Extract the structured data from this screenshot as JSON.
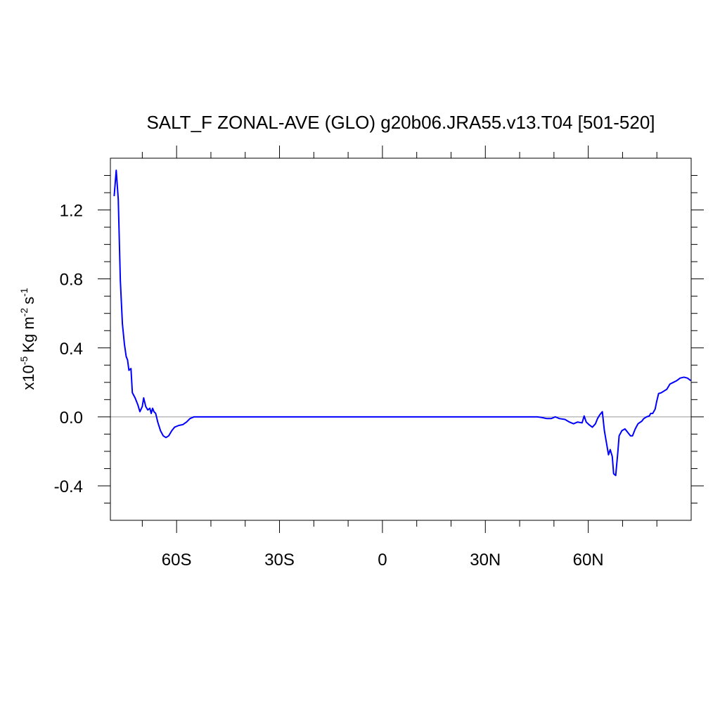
{
  "chart_data": {
    "type": "line",
    "title": "SALT_F ZONAL-AVE (GLO) g20b06.JRA55.v13.T04 [501-520]",
    "ylabel": [
      "x10",
      "-5",
      "Kg m",
      "-2",
      "s",
      "-1"
    ],
    "x": [
      -78.2,
      -77.6,
      -77.0,
      -76.4,
      -75.8,
      -75.2,
      -74.7,
      -74.3,
      -73.9,
      -73.3,
      -72.9,
      -72.1,
      -71.3,
      -70.7,
      -70.0,
      -69.6,
      -69.0,
      -68.4,
      -67.8,
      -67.4,
      -67.0,
      -66.6,
      -66.1,
      -65.5,
      -64.7,
      -63.9,
      -63.1,
      -62.3,
      -61.4,
      -60.6,
      -59.4,
      -58.2,
      -57.1,
      -56.1,
      -54.9,
      -52,
      -40,
      0,
      40,
      45.1,
      46.3,
      47.9,
      49.2,
      50.4,
      51.6,
      53.2,
      54.5,
      55.7,
      56.9,
      58.2,
      58.8,
      59.4,
      60.2,
      61.2,
      62.1,
      62.7,
      63.3,
      64.1,
      64.7,
      65.3,
      65.9,
      66.4,
      67.0,
      67.4,
      68.0,
      68.6,
      69.0,
      69.8,
      70.7,
      71.5,
      72.3,
      72.9,
      73.7,
      74.5,
      75.6,
      76.2,
      77.0,
      77.8,
      78.2,
      78.8,
      79.5,
      79.9,
      80.5,
      81.3,
      82.1,
      82.9,
      83.8,
      84.8,
      85.8,
      86.8,
      87.9,
      88.9,
      89.9
    ],
    "values": [
      1.28,
      1.43,
      1.26,
      0.79,
      0.54,
      0.42,
      0.35,
      0.33,
      0.27,
      0.28,
      0.14,
      0.11,
      0.07,
      0.03,
      0.06,
      0.11,
      0.06,
      0.04,
      0.05,
      0.02,
      0.05,
      0.03,
      0.02,
      -0.03,
      -0.08,
      -0.11,
      -0.12,
      -0.11,
      -0.08,
      -0.06,
      -0.05,
      -0.045,
      -0.03,
      -0.01,
      0,
      0,
      0,
      0,
      0,
      0,
      -0.003,
      -0.01,
      -0.01,
      0,
      -0.01,
      -0.015,
      -0.03,
      -0.04,
      -0.03,
      -0.035,
      0.005,
      -0.03,
      -0.045,
      -0.06,
      -0.04,
      -0.01,
      0.01,
      0.03,
      -0.08,
      -0.15,
      -0.22,
      -0.19,
      -0.23,
      -0.33,
      -0.34,
      -0.21,
      -0.11,
      -0.08,
      -0.07,
      -0.09,
      -0.11,
      -0.11,
      -0.07,
      -0.04,
      -0.025,
      -0.01,
      0,
      0.005,
      0.02,
      0.02,
      0.045,
      0.085,
      0.135,
      0.14,
      0.15,
      0.16,
      0.19,
      0.2,
      0.21,
      0.225,
      0.23,
      0.225,
      0.21
    ],
    "color": "#0000ff",
    "zero_line": true,
    "xlim": [
      -79.3,
      90
    ],
    "ylim": [
      -0.6,
      1.5
    ],
    "xticks": [
      {
        "value": -60,
        "label": "60S"
      },
      {
        "value": -30,
        "label": "30S"
      },
      0,
      {
        "value": 30,
        "label": "30N"
      },
      {
        "value": 60,
        "label": "60N"
      }
    ],
    "xminorticks": [
      -70,
      -50,
      -40,
      -20,
      -10,
      10,
      20,
      40,
      50,
      70,
      80
    ],
    "yticks": [
      -0.4,
      {
        "value": 0,
        "label": "0.0"
      },
      0.4,
      0.8,
      1.2
    ],
    "yminorticks": [
      -0.5,
      -0.3,
      -0.2,
      -0.1,
      0.1,
      0.2,
      0.3,
      0.5,
      0.6,
      0.7,
      0.9,
      1.0,
      1.1,
      1.3,
      1.4
    ]
  }
}
